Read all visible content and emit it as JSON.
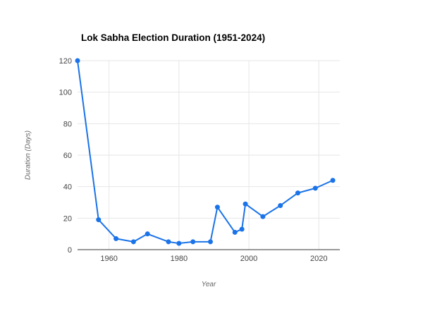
{
  "chart": {
    "title": "Lok Sabha Election Duration (1951-2024)",
    "xlabel": "Year",
    "ylabel": "Duration (Days)"
  },
  "chart_data": {
    "type": "line",
    "title": "Lok Sabha Election Duration (1951-2024)",
    "xlabel": "Year",
    "ylabel": "Duration (Days)",
    "x": [
      1951,
      1957,
      1962,
      1967,
      1971,
      1977,
      1980,
      1984,
      1989,
      1991,
      1996,
      1998,
      1999,
      2004,
      2009,
      2014,
      2019,
      2024
    ],
    "values": [
      120,
      19,
      7,
      5,
      10,
      5,
      4,
      5,
      5,
      27,
      11,
      13,
      29,
      21,
      28,
      36,
      39,
      44
    ],
    "x_ticks": [
      1960,
      1980,
      2000,
      2020
    ],
    "y_ticks": [
      0,
      20,
      40,
      60,
      80,
      100,
      120
    ],
    "xlim": [
      1951,
      2026
    ],
    "ylim": [
      0,
      120
    ],
    "line_color": "#1a73e8",
    "grid_color": "#e6e6e6",
    "baseline_color": "#333333",
    "tick_label_color": "#444444",
    "grid": true,
    "legend": "none",
    "marker": "circle"
  }
}
